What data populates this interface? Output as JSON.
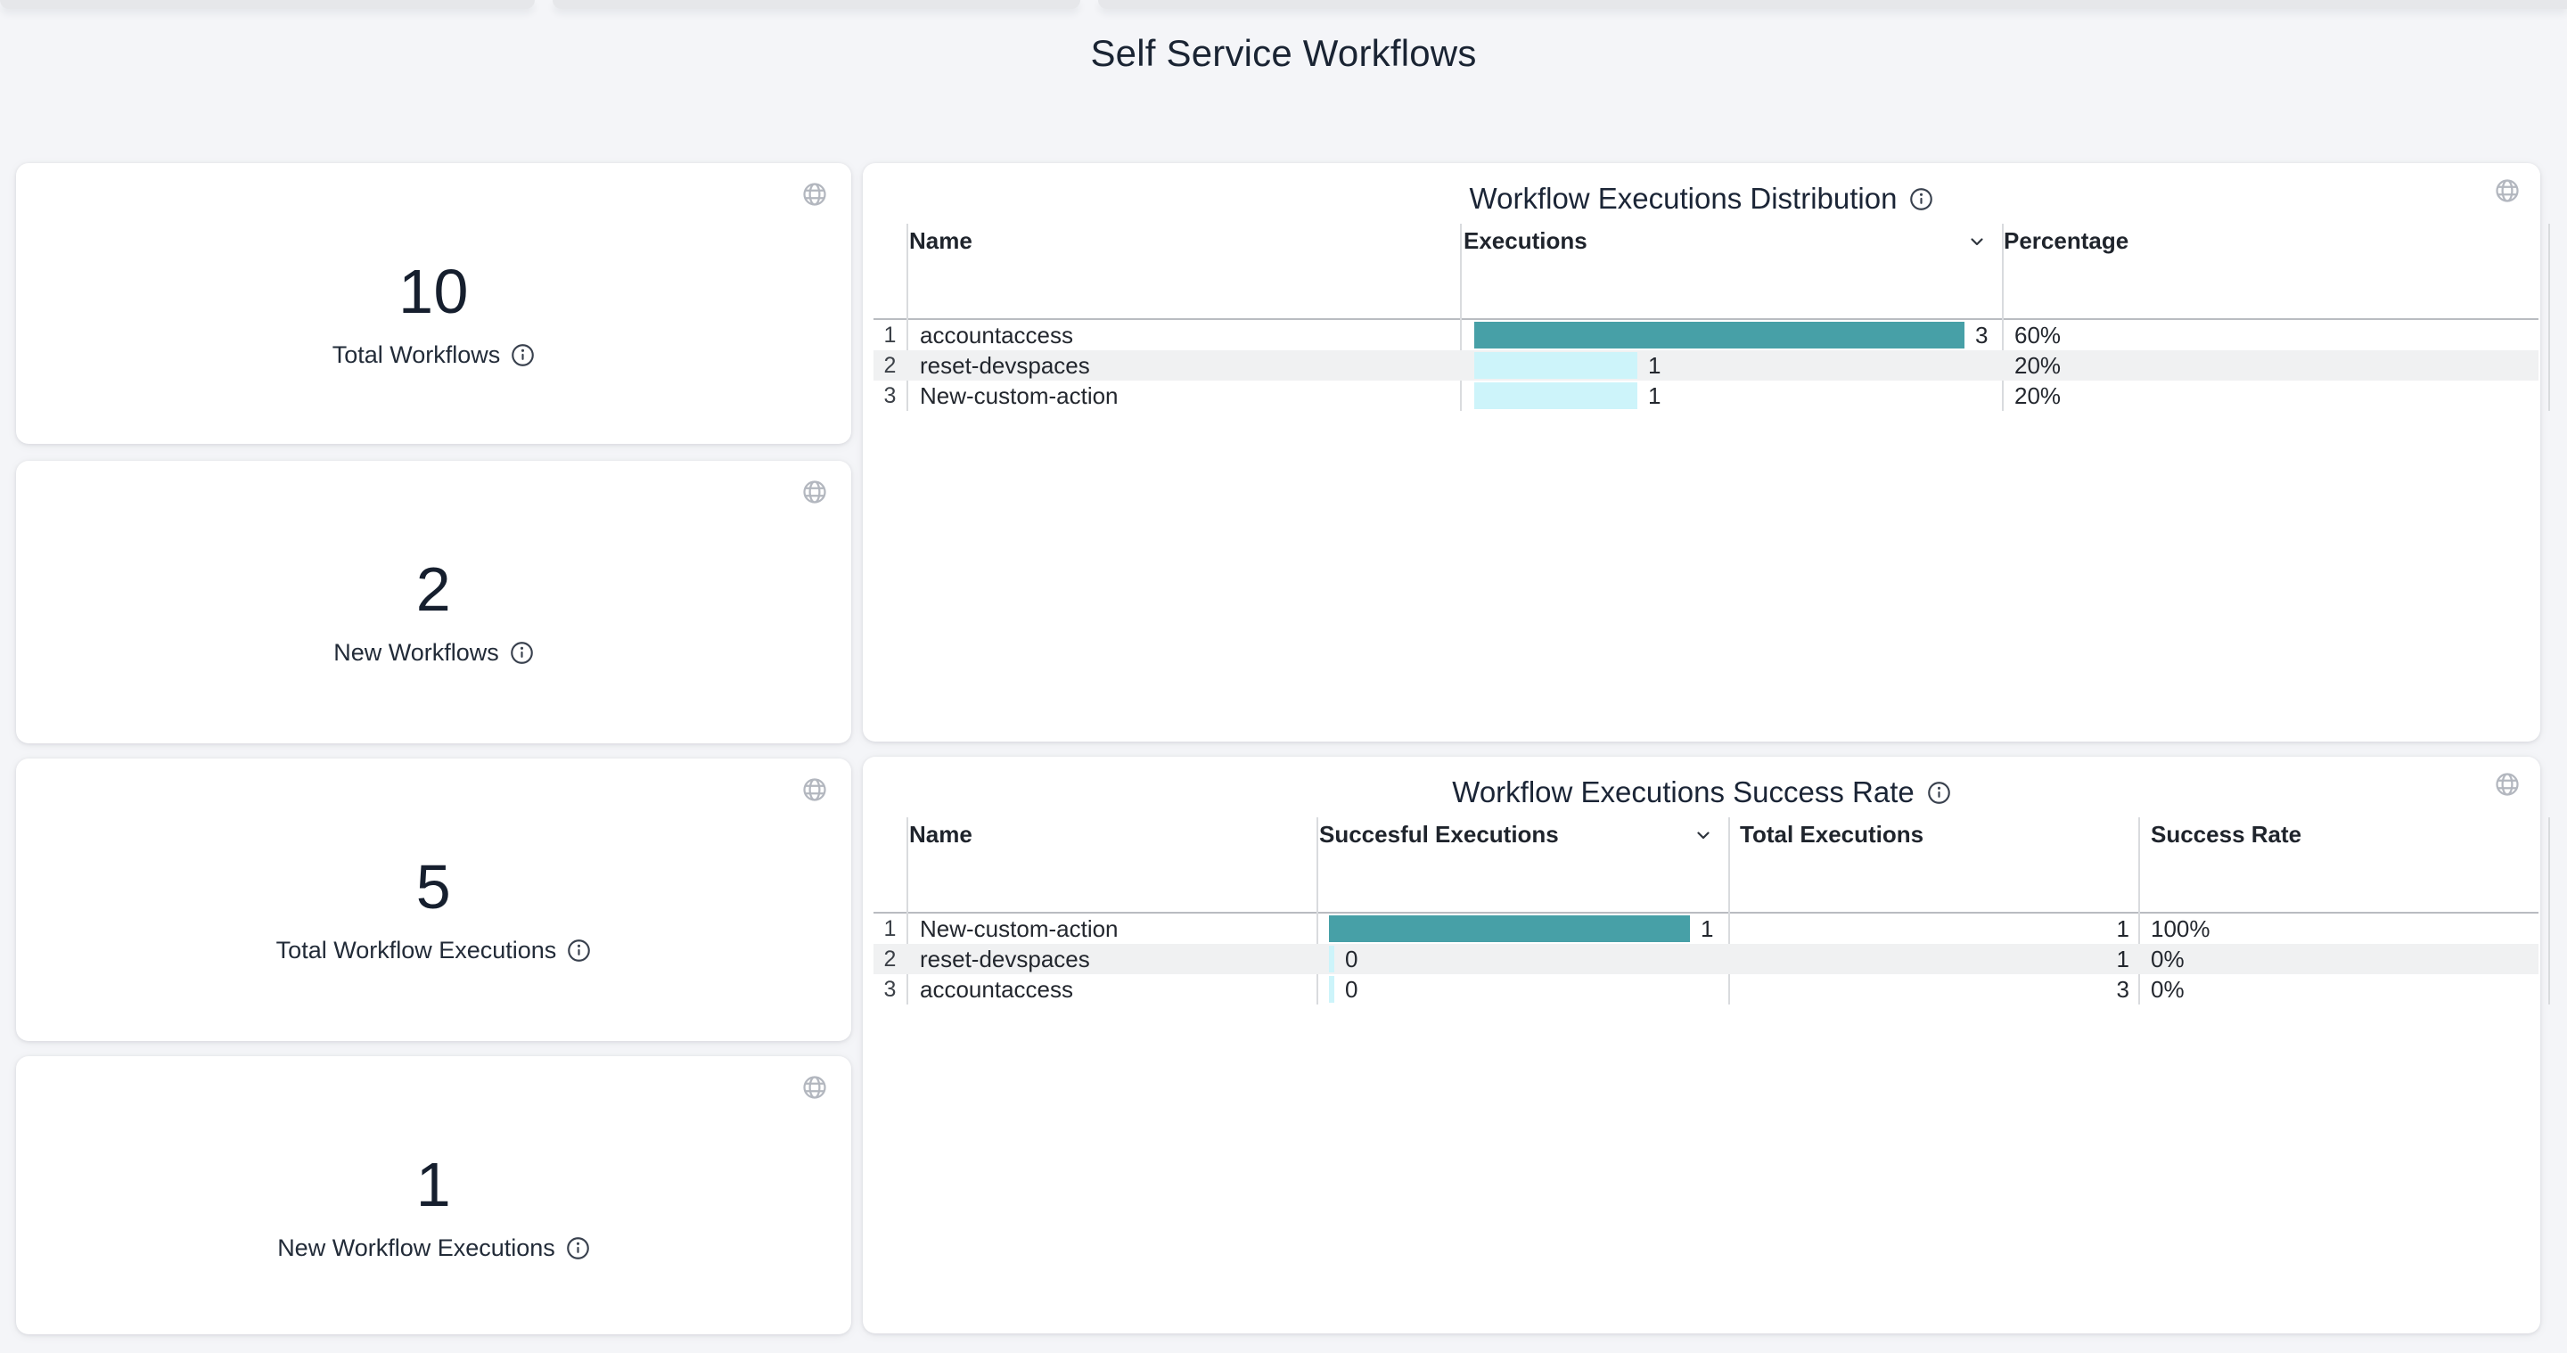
{
  "page": {
    "title": "Self Service Workflows"
  },
  "colors": {
    "bar_primary": "#47a0a7",
    "bar_secondary": "#cdf4fa",
    "zebra_row": "#f0f1f2",
    "page_bg": "#f4f5f8",
    "text_dark": "#1a2433"
  },
  "stat_cards": [
    {
      "value": "10",
      "label": "Total Workflows"
    },
    {
      "value": "2",
      "label": "New Workflows"
    },
    {
      "value": "5",
      "label": "Total Workflow Executions"
    },
    {
      "value": "1",
      "label": "New Workflow Executions"
    }
  ],
  "panels": [
    {
      "title": "Workflow Executions Distribution",
      "columns": [
        "Name",
        "Executions",
        "Percentage"
      ],
      "sorted_column": "Executions",
      "bar_max": 3,
      "rows": [
        {
          "index": "1",
          "name": "accountaccess",
          "value": 3,
          "value_label": "3",
          "percentage": "60%"
        },
        {
          "index": "2",
          "name": "reset-devspaces",
          "value": 1,
          "value_label": "1",
          "percentage": "20%"
        },
        {
          "index": "3",
          "name": "New-custom-action",
          "value": 1,
          "value_label": "1",
          "percentage": "20%"
        }
      ]
    },
    {
      "title": "Workflow Executions Success Rate",
      "columns": [
        "Name",
        "Succesful Executions",
        "Total Executions",
        "Success Rate"
      ],
      "sorted_column": "Succesful Executions",
      "bar_max": 1,
      "rows": [
        {
          "index": "1",
          "name": "New-custom-action",
          "value": 1,
          "value_label": "1",
          "total": "1",
          "rate": "100%"
        },
        {
          "index": "2",
          "name": "reset-devspaces",
          "value": 0,
          "value_label": "0",
          "total": "1",
          "rate": "0%"
        },
        {
          "index": "3",
          "name": "accountaccess",
          "value": 0,
          "value_label": "0",
          "total": "3",
          "rate": "0%"
        }
      ]
    }
  ]
}
